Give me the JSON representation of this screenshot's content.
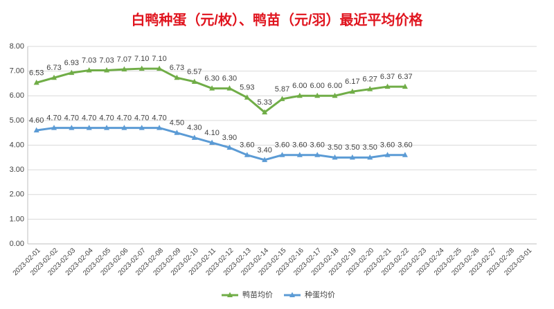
{
  "chart_data": {
    "type": "line",
    "title": "白鸭种蛋（元/枚）、鸭苗（元/羽）最近平均价格",
    "categories": [
      "2023-02-01",
      "2023-02-02",
      "2023-02-03",
      "2023-02-04",
      "2023-02-05",
      "2023-02-06",
      "2023-02-07",
      "2023-02-08",
      "2023-02-09",
      "2023-02-10",
      "2023-02-11",
      "2023-02-12",
      "2023-02-13",
      "2023-02-14",
      "2023-02-15",
      "2023-02-16",
      "2023-02-17",
      "2023-02-18",
      "2023-02-19",
      "2023-02-20",
      "2023-02-21",
      "2023-02-22",
      "2023-02-23",
      "2023-02-24",
      "2023-02-25",
      "2023-02-26",
      "2023-02-27",
      "2023-02-28",
      "2023-03-01"
    ],
    "series": [
      {
        "name": "鸭苗均价",
        "color": "#70ad47",
        "values": [
          6.53,
          6.73,
          6.93,
          7.03,
          7.03,
          7.07,
          7.1,
          7.1,
          6.73,
          6.57,
          6.3,
          6.3,
          5.93,
          5.33,
          5.87,
          6.0,
          6.0,
          6.0,
          6.17,
          6.27,
          6.37,
          6.37,
          null,
          null,
          null,
          null,
          null,
          null,
          null
        ],
        "value_labels": [
          "6.53",
          "6.73",
          "6.93",
          "7.03",
          "7.03",
          "7.07",
          "7.10",
          "7.10",
          "6.73",
          "6.57",
          "6.30",
          "6.30",
          "5.93",
          "5.33",
          "5.87",
          "6.00",
          "6.00",
          "6.00",
          "6.17",
          "6.27",
          "6.37",
          "6.37",
          null,
          null,
          null,
          null,
          null,
          null,
          null
        ]
      },
      {
        "name": "种蛋均价",
        "color": "#5b9bd5",
        "values": [
          4.6,
          4.7,
          4.7,
          4.7,
          4.7,
          4.7,
          4.7,
          4.7,
          4.5,
          4.3,
          4.1,
          3.9,
          3.6,
          3.4,
          3.6,
          3.6,
          3.6,
          3.5,
          3.5,
          3.5,
          3.6,
          3.6,
          null,
          null,
          null,
          null,
          null,
          null,
          null
        ],
        "value_labels": [
          "4.60",
          "4.70",
          "4.70",
          "4.70",
          "4.70",
          "4.70",
          "4.70",
          "4.70",
          "4.50",
          "4.30",
          "4.10",
          "3.90",
          "3.60",
          "3.40",
          "3.60",
          "3.60",
          "3.60",
          "3.50",
          "3.50",
          "3.50",
          "3.60",
          "3.60",
          null,
          null,
          null,
          null,
          null,
          null,
          null
        ]
      }
    ],
    "ylim": [
      0,
      8
    ],
    "yticks": [
      {
        "value": 0,
        "label": "0.00"
      },
      {
        "value": 1,
        "label": "1.00"
      },
      {
        "value": 2,
        "label": "2.00"
      },
      {
        "value": 3,
        "label": "3.00"
      },
      {
        "value": 4,
        "label": "4.00"
      },
      {
        "value": 5,
        "label": "5.00"
      },
      {
        "value": 6,
        "label": "6.00"
      },
      {
        "value": 7,
        "label": "7.00"
      },
      {
        "value": 8,
        "label": "8.00"
      }
    ],
    "grid": true,
    "legend": "bottom"
  }
}
